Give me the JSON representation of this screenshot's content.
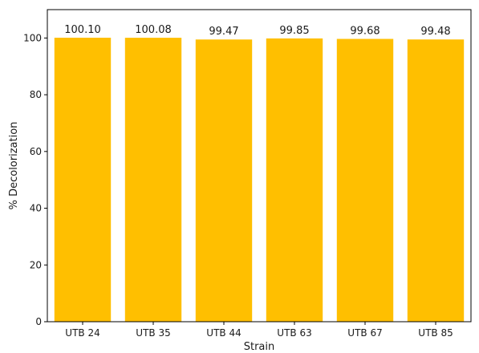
{
  "chart_data": {
    "type": "bar",
    "title": "",
    "xlabel": "Strain",
    "ylabel": "% Decolorization",
    "categories": [
      "UTB 24",
      "UTB 35",
      "UTB 44",
      "UTB 63",
      "UTB 67",
      "UTB 85"
    ],
    "values": [
      100.1,
      100.08,
      99.47,
      99.85,
      99.68,
      99.48
    ],
    "data_labels": [
      "100.10",
      "100.08",
      "99.47",
      "99.85",
      "99.68",
      "99.48"
    ],
    "ylim": [
      0,
      110
    ],
    "yticks": [
      0,
      20,
      40,
      60,
      80,
      100
    ],
    "grid": false,
    "legend": "none",
    "bar_color": "#FFBF00"
  }
}
